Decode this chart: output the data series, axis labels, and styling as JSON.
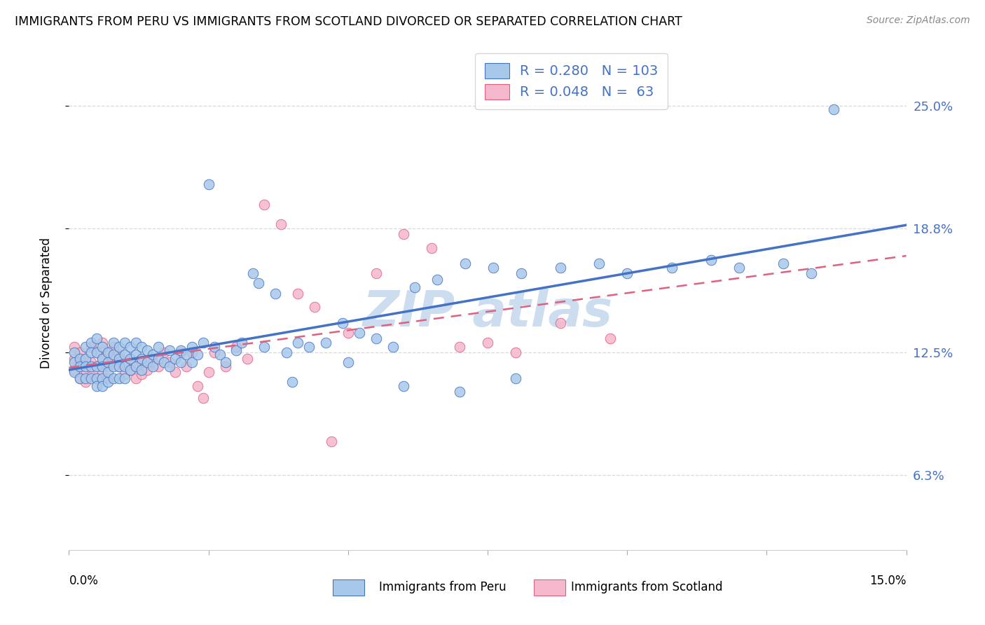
{
  "title": "IMMIGRANTS FROM PERU VS IMMIGRANTS FROM SCOTLAND DIVORCED OR SEPARATED CORRELATION CHART",
  "source": "Source: ZipAtlas.com",
  "ylabel": "Divorced or Separated",
  "right_ytick_labels": [
    "25.0%",
    "18.8%",
    "12.5%",
    "6.3%"
  ],
  "right_ytick_vals": [
    0.25,
    0.188,
    0.125,
    0.063
  ],
  "legend_peru_R": "0.280",
  "legend_peru_N": "103",
  "legend_scot_R": "0.048",
  "legend_scot_N": "63",
  "peru_face_color": "#a8c8ea",
  "peru_edge_color": "#4472c4",
  "scot_face_color": "#f5b8cc",
  "scot_edge_color": "#e06080",
  "legend_text_color": "#4472c4",
  "grid_color": "#d8d8e0",
  "watermark_color": "#ccddf0",
  "xlim": [
    0.0,
    0.15
  ],
  "ylim": [
    0.025,
    0.275
  ],
  "figsize": [
    14.06,
    8.92
  ],
  "dpi": 100,
  "peru_x": [
    0.001,
    0.001,
    0.001,
    0.002,
    0.002,
    0.002,
    0.003,
    0.003,
    0.003,
    0.003,
    0.004,
    0.004,
    0.004,
    0.004,
    0.005,
    0.005,
    0.005,
    0.005,
    0.005,
    0.006,
    0.006,
    0.006,
    0.006,
    0.006,
    0.007,
    0.007,
    0.007,
    0.007,
    0.008,
    0.008,
    0.008,
    0.008,
    0.009,
    0.009,
    0.009,
    0.009,
    0.01,
    0.01,
    0.01,
    0.01,
    0.011,
    0.011,
    0.011,
    0.012,
    0.012,
    0.012,
    0.013,
    0.013,
    0.013,
    0.014,
    0.014,
    0.015,
    0.015,
    0.016,
    0.016,
    0.017,
    0.018,
    0.018,
    0.019,
    0.02,
    0.02,
    0.021,
    0.022,
    0.022,
    0.023,
    0.024,
    0.025,
    0.026,
    0.027,
    0.028,
    0.03,
    0.031,
    0.033,
    0.034,
    0.035,
    0.037,
    0.039,
    0.041,
    0.043,
    0.046,
    0.049,
    0.052,
    0.055,
    0.058,
    0.062,
    0.066,
    0.071,
    0.076,
    0.081,
    0.088,
    0.095,
    0.1,
    0.108,
    0.115,
    0.12,
    0.128,
    0.133,
    0.04,
    0.05,
    0.06,
    0.07,
    0.08,
    0.137
  ],
  "peru_y": [
    0.125,
    0.12,
    0.115,
    0.122,
    0.118,
    0.112,
    0.128,
    0.122,
    0.118,
    0.112,
    0.13,
    0.125,
    0.118,
    0.112,
    0.132,
    0.125,
    0.118,
    0.112,
    0.108,
    0.128,
    0.122,
    0.118,
    0.112,
    0.108,
    0.125,
    0.12,
    0.115,
    0.11,
    0.13,
    0.124,
    0.118,
    0.112,
    0.128,
    0.122,
    0.118,
    0.112,
    0.13,
    0.124,
    0.118,
    0.112,
    0.128,
    0.122,
    0.116,
    0.13,
    0.124,
    0.118,
    0.128,
    0.122,
    0.116,
    0.126,
    0.12,
    0.124,
    0.118,
    0.128,
    0.122,
    0.12,
    0.126,
    0.118,
    0.122,
    0.126,
    0.12,
    0.124,
    0.128,
    0.12,
    0.124,
    0.13,
    0.21,
    0.128,
    0.124,
    0.12,
    0.126,
    0.13,
    0.165,
    0.16,
    0.128,
    0.155,
    0.125,
    0.13,
    0.128,
    0.13,
    0.14,
    0.135,
    0.132,
    0.128,
    0.158,
    0.162,
    0.17,
    0.168,
    0.165,
    0.168,
    0.17,
    0.165,
    0.168,
    0.172,
    0.168,
    0.17,
    0.165,
    0.11,
    0.12,
    0.108,
    0.105,
    0.112,
    0.248
  ],
  "scot_x": [
    0.001,
    0.001,
    0.001,
    0.002,
    0.002,
    0.002,
    0.003,
    0.003,
    0.003,
    0.004,
    0.004,
    0.004,
    0.005,
    0.005,
    0.005,
    0.006,
    0.006,
    0.006,
    0.007,
    0.007,
    0.007,
    0.008,
    0.008,
    0.009,
    0.009,
    0.01,
    0.01,
    0.011,
    0.011,
    0.012,
    0.012,
    0.013,
    0.013,
    0.014,
    0.015,
    0.016,
    0.017,
    0.018,
    0.019,
    0.02,
    0.021,
    0.022,
    0.023,
    0.024,
    0.025,
    0.026,
    0.028,
    0.03,
    0.032,
    0.035,
    0.038,
    0.041,
    0.044,
    0.047,
    0.05,
    0.055,
    0.06,
    0.065,
    0.07,
    0.075,
    0.08,
    0.088,
    0.097
  ],
  "scot_y": [
    0.128,
    0.122,
    0.116,
    0.125,
    0.118,
    0.112,
    0.122,
    0.116,
    0.11,
    0.128,
    0.12,
    0.113,
    0.125,
    0.118,
    0.112,
    0.13,
    0.122,
    0.115,
    0.125,
    0.118,
    0.112,
    0.128,
    0.122,
    0.124,
    0.118,
    0.12,
    0.114,
    0.122,
    0.116,
    0.118,
    0.112,
    0.12,
    0.114,
    0.116,
    0.12,
    0.118,
    0.125,
    0.12,
    0.115,
    0.125,
    0.118,
    0.125,
    0.108,
    0.102,
    0.115,
    0.125,
    0.118,
    0.128,
    0.122,
    0.2,
    0.19,
    0.155,
    0.148,
    0.08,
    0.135,
    0.165,
    0.185,
    0.178,
    0.128,
    0.13,
    0.125,
    0.14,
    0.132
  ]
}
